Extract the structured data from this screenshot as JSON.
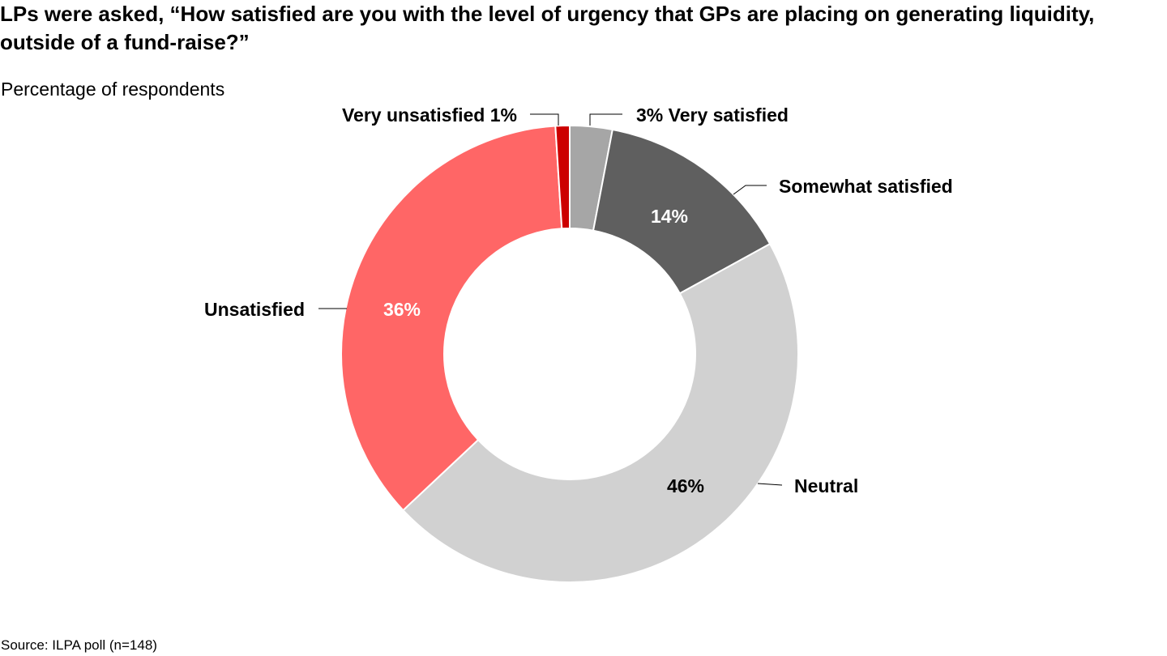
{
  "title": "LPs were asked, “How satisfied are you with the level of urgency that GPs are placing on generating liquidity, outside of a fund-raise?”",
  "subtitle": "Percentage of respondents",
  "source": "Source: ILPA poll (n=148)",
  "chart_data": {
    "type": "pie",
    "variant": "donut",
    "start": "top, clockwise",
    "slices": [
      {
        "label": "Very satisfied",
        "value": 3,
        "value_label": "3%",
        "color": "#a6a6a6",
        "label_position": "outside"
      },
      {
        "label": "Somewhat satisfied",
        "value": 14,
        "value_label": "14%",
        "color": "#5f5f5f",
        "label_position": "inside"
      },
      {
        "label": "Neutral",
        "value": 46,
        "value_label": "46%",
        "color": "#d1d1d1",
        "label_position": "inside"
      },
      {
        "label": "Unsatisfied",
        "value": 36,
        "value_label": "36%",
        "color": "#ff6666",
        "label_position": "inside"
      },
      {
        "label": "Very unsatisfied",
        "value": 1,
        "value_label": "1%",
        "color": "#cc0000",
        "label_position": "outside"
      }
    ]
  }
}
